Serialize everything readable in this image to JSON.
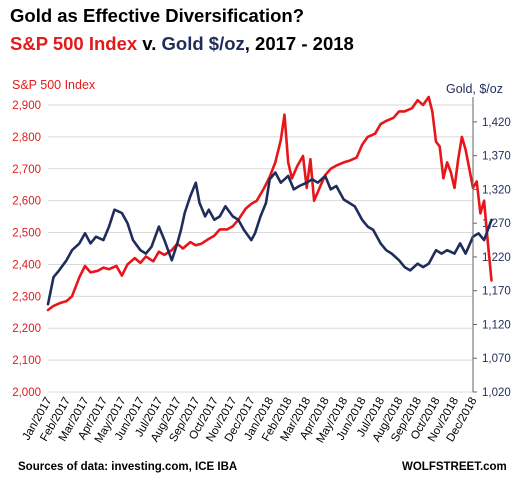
{
  "title_line1": "Gold  as Effective Diversification?",
  "title_line2": {
    "part1": "S&P 500 Index",
    "part2": " v. ",
    "part3": "Gold",
    "part4": "  $/oz",
    "part5": ", 2017 - 2018"
  },
  "source": "Sources of data: investing.com, ICE IBA",
  "credit": "WOLFSTREET.com",
  "colors": {
    "sp500": "#e8161b",
    "gold": "#1f2d5c",
    "grid": "#d9d9d9"
  },
  "chart_data": {
    "type": "line",
    "x_labels": [
      "Jan/2017",
      "Feb/2017",
      "Mar/2017",
      "Apr/2017",
      "May/2017",
      "Jun/2017",
      "Jul/2017",
      "Aug/2017",
      "Sep/2017",
      "Oct/2017",
      "Nov/2017",
      "Dec/2017",
      "Jan/2018",
      "Feb/2018",
      "Mar/2018",
      "Apr/2018",
      "May/2018",
      "Jun/2018",
      "Jul/2018",
      "Aug/2018",
      "Sep/2018",
      "Oct/2018",
      "Nov/2018",
      "Dec/2018"
    ],
    "y_left": {
      "label": "S&P 500 Index",
      "range": [
        2000,
        2900
      ],
      "ticks": [
        "2,000",
        "2,100",
        "2,200",
        "2,300",
        "2,400",
        "2,500",
        "2,600",
        "2,700",
        "2,800",
        "2,900"
      ]
    },
    "y_right": {
      "label": "Gold, $/oz",
      "range": [
        1020,
        1445
      ],
      "ticks": [
        "1,020",
        "1,070",
        "1,120",
        "1,170",
        "1,220",
        "1,270",
        "1,320",
        "1,370",
        "1,420"
      ]
    },
    "grid": true,
    "series": [
      {
        "name": "S&P 500 Index",
        "axis": "left",
        "x": [
          0,
          0.3,
          0.7,
          1.0,
          1.3,
          1.7,
          2.0,
          2.3,
          2.7,
          3.0,
          3.3,
          3.7,
          4.0,
          4.3,
          4.7,
          5.0,
          5.3,
          5.7,
          6.0,
          6.3,
          6.7,
          7.0,
          7.3,
          7.7,
          8.0,
          8.3,
          8.7,
          9.0,
          9.3,
          9.7,
          10.0,
          10.3,
          10.7,
          11.0,
          11.3,
          11.7,
          12.0,
          12.3,
          12.6,
          12.8,
          13.0,
          13.2,
          13.5,
          13.8,
          14.0,
          14.2,
          14.4,
          14.7,
          15.0,
          15.3,
          15.6,
          16.0,
          16.3,
          16.7,
          17.0,
          17.3,
          17.7,
          18.0,
          18.3,
          18.7,
          19.0,
          19.3,
          19.7,
          20.0,
          20.3,
          20.6,
          20.8,
          21.0,
          21.2,
          21.4,
          21.6,
          21.8,
          22.0,
          22.2,
          22.4,
          22.6,
          22.8,
          23.0,
          23.2,
          23.4,
          23.6,
          23.8,
          24.0
        ],
        "y": [
          2257,
          2270,
          2280,
          2285,
          2300,
          2360,
          2395,
          2375,
          2380,
          2390,
          2385,
          2395,
          2365,
          2400,
          2420,
          2405,
          2425,
          2410,
          2440,
          2430,
          2445,
          2465,
          2450,
          2470,
          2460,
          2465,
          2480,
          2490,
          2510,
          2510,
          2520,
          2540,
          2575,
          2590,
          2600,
          2640,
          2675,
          2720,
          2790,
          2870,
          2720,
          2670,
          2710,
          2740,
          2640,
          2730,
          2600,
          2640,
          2680,
          2700,
          2710,
          2720,
          2725,
          2735,
          2775,
          2800,
          2810,
          2840,
          2850,
          2860,
          2880,
          2880,
          2890,
          2915,
          2900,
          2925,
          2880,
          2785,
          2770,
          2670,
          2720,
          2690,
          2640,
          2730,
          2800,
          2760,
          2700,
          2640,
          2660,
          2560,
          2600,
          2470,
          2350
        ]
      },
      {
        "name": "Gold",
        "axis": "right",
        "x": [
          0,
          0.3,
          0.6,
          1.0,
          1.3,
          1.7,
          2.0,
          2.3,
          2.6,
          3.0,
          3.3,
          3.6,
          4.0,
          4.3,
          4.6,
          5.0,
          5.3,
          5.6,
          6.0,
          6.3,
          6.5,
          6.7,
          7.0,
          7.2,
          7.4,
          7.7,
          8.0,
          8.2,
          8.5,
          8.7,
          9.0,
          9.3,
          9.6,
          10.0,
          10.3,
          10.6,
          11.0,
          11.2,
          11.5,
          11.8,
          12.0,
          12.3,
          12.6,
          13.0,
          13.3,
          13.6,
          14.0,
          14.3,
          14.6,
          15.0,
          15.3,
          15.6,
          16.0,
          16.3,
          16.6,
          17.0,
          17.3,
          17.6,
          18.0,
          18.3,
          18.6,
          19.0,
          19.3,
          19.6,
          20.0,
          20.3,
          20.6,
          21.0,
          21.3,
          21.6,
          22.0,
          22.3,
          22.6,
          23.0,
          23.3,
          23.6,
          24.0
        ],
        "y": [
          1150,
          1190,
          1200,
          1215,
          1230,
          1240,
          1255,
          1240,
          1250,
          1245,
          1265,
          1290,
          1285,
          1270,
          1245,
          1230,
          1225,
          1235,
          1265,
          1245,
          1230,
          1215,
          1240,
          1260,
          1285,
          1310,
          1330,
          1300,
          1280,
          1290,
          1275,
          1280,
          1295,
          1280,
          1275,
          1260,
          1245,
          1255,
          1280,
          1300,
          1335,
          1345,
          1330,
          1340,
          1320,
          1325,
          1330,
          1335,
          1330,
          1340,
          1320,
          1325,
          1305,
          1300,
          1295,
          1275,
          1265,
          1260,
          1240,
          1230,
          1225,
          1215,
          1205,
          1200,
          1210,
          1205,
          1210,
          1230,
          1225,
          1230,
          1225,
          1240,
          1225,
          1250,
          1255,
          1245,
          1275
        ]
      }
    ]
  }
}
